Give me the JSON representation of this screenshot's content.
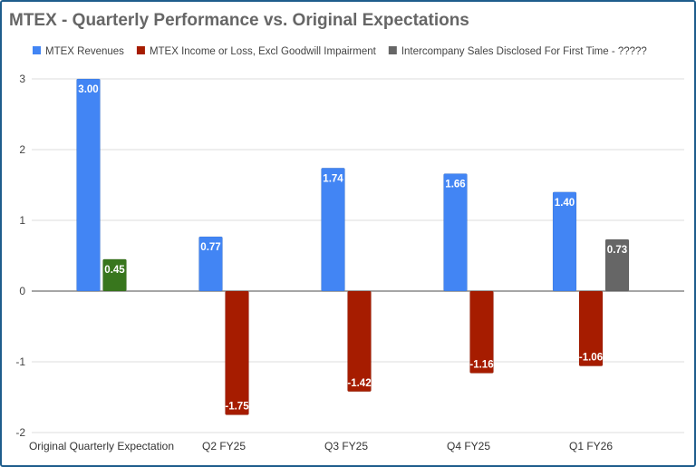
{
  "chart_data": {
    "type": "bar",
    "title": "MTEX - Quarterly Performance vs. Original Expectations",
    "categories": [
      "Original Quarterly Expectation",
      "Q2 FY25",
      "Q3 FY25",
      "Q4 FY25",
      "Q1 FY26"
    ],
    "series": [
      {
        "name": "MTEX Revenues",
        "color": "#4285f4",
        "values": [
          3.0,
          0.77,
          1.74,
          1.66,
          1.4
        ],
        "labels": [
          "3.00",
          "0.77",
          "1.74",
          "1.66",
          "1.40"
        ]
      },
      {
        "name": "MTEX Income or Loss, Excl Goodwill Impairment",
        "color": "#a61c00",
        "values": [
          0.45,
          -1.75,
          -1.42,
          -1.16,
          -1.06
        ],
        "labels": [
          "0.45",
          "-1.75",
          "-1.42",
          "-1.16",
          "-1.06"
        ],
        "point_colors": [
          "#38761d",
          null,
          null,
          null,
          null
        ]
      },
      {
        "name": "Intercompany Sales Disclosed For First Time - ?????",
        "color": "#666666",
        "values": [
          null,
          null,
          null,
          null,
          0.73
        ],
        "labels": [
          "",
          "",
          "",
          "",
          "0.73"
        ]
      }
    ],
    "ylim": [
      -2,
      3
    ],
    "yticks": [
      "3",
      "2",
      "1",
      "0",
      "-1",
      "-2"
    ],
    "grid": true,
    "legend": "top",
    "xlabel": "",
    "ylabel": ""
  }
}
